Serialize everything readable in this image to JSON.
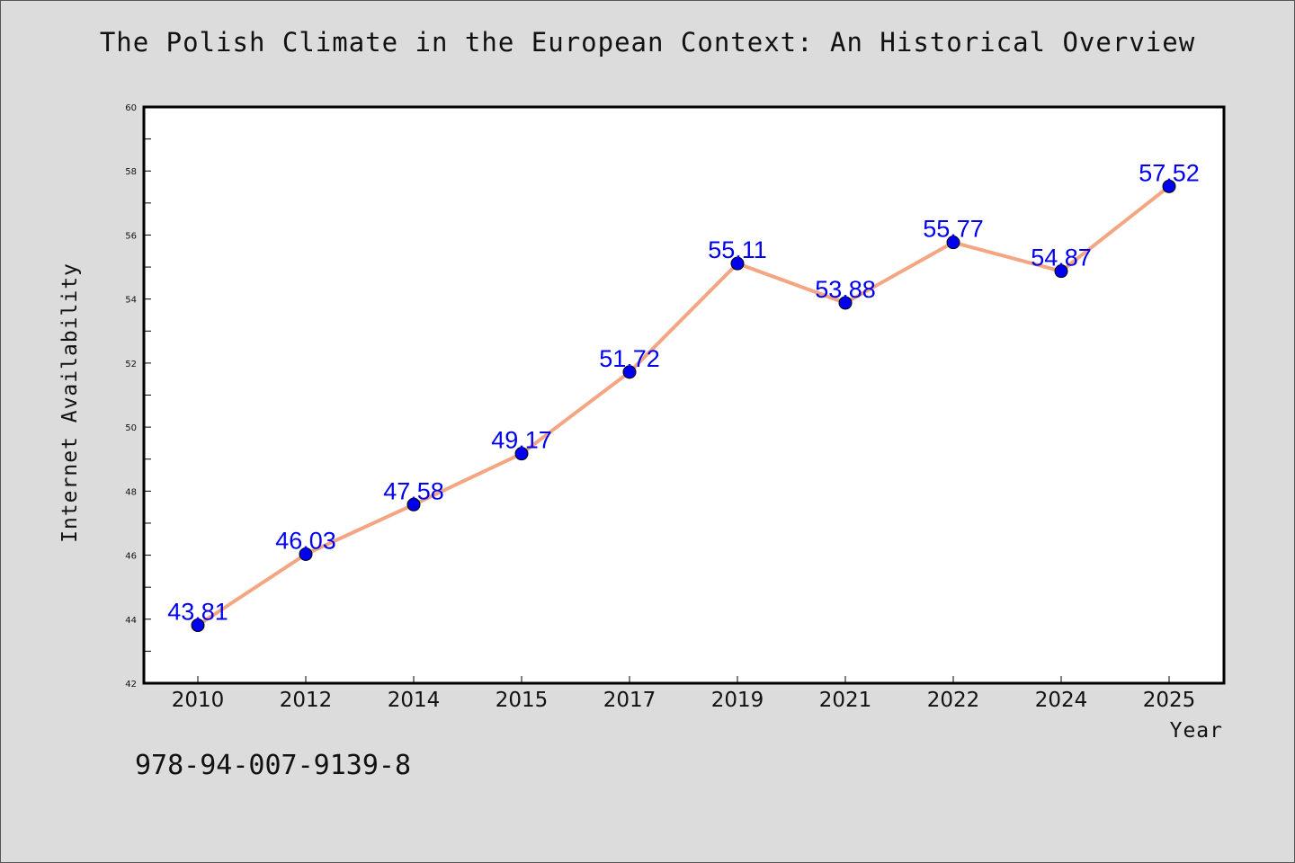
{
  "chart_data": {
    "type": "line",
    "title": "The Polish Climate in the European Context: An Historical Overview",
    "xlabel": "Year",
    "ylabel": "Internet Availability",
    "categories": [
      "2010",
      "2012",
      "2014",
      "2015",
      "2017",
      "2019",
      "2021",
      "2022",
      "2024",
      "2025"
    ],
    "values": [
      43.81,
      46.03,
      47.58,
      49.17,
      51.72,
      55.11,
      53.88,
      55.77,
      54.87,
      57.52
    ],
    "data_labels": [
      "43.81",
      "46.03",
      "47.58",
      "49.17",
      "51.72",
      "55.11",
      "53.88",
      "55.77",
      "54.87",
      "57.52"
    ],
    "ylim": [
      42,
      60
    ],
    "yticks": [
      "42",
      "44",
      "46",
      "48",
      "50",
      "52",
      "54",
      "56",
      "58",
      "60"
    ],
    "grid": false,
    "line_color": "#f4a582",
    "marker_color": "#0000ee",
    "label_color": "#0000ee"
  },
  "footer": {
    "isbn": "978-94-007-9139-8"
  }
}
